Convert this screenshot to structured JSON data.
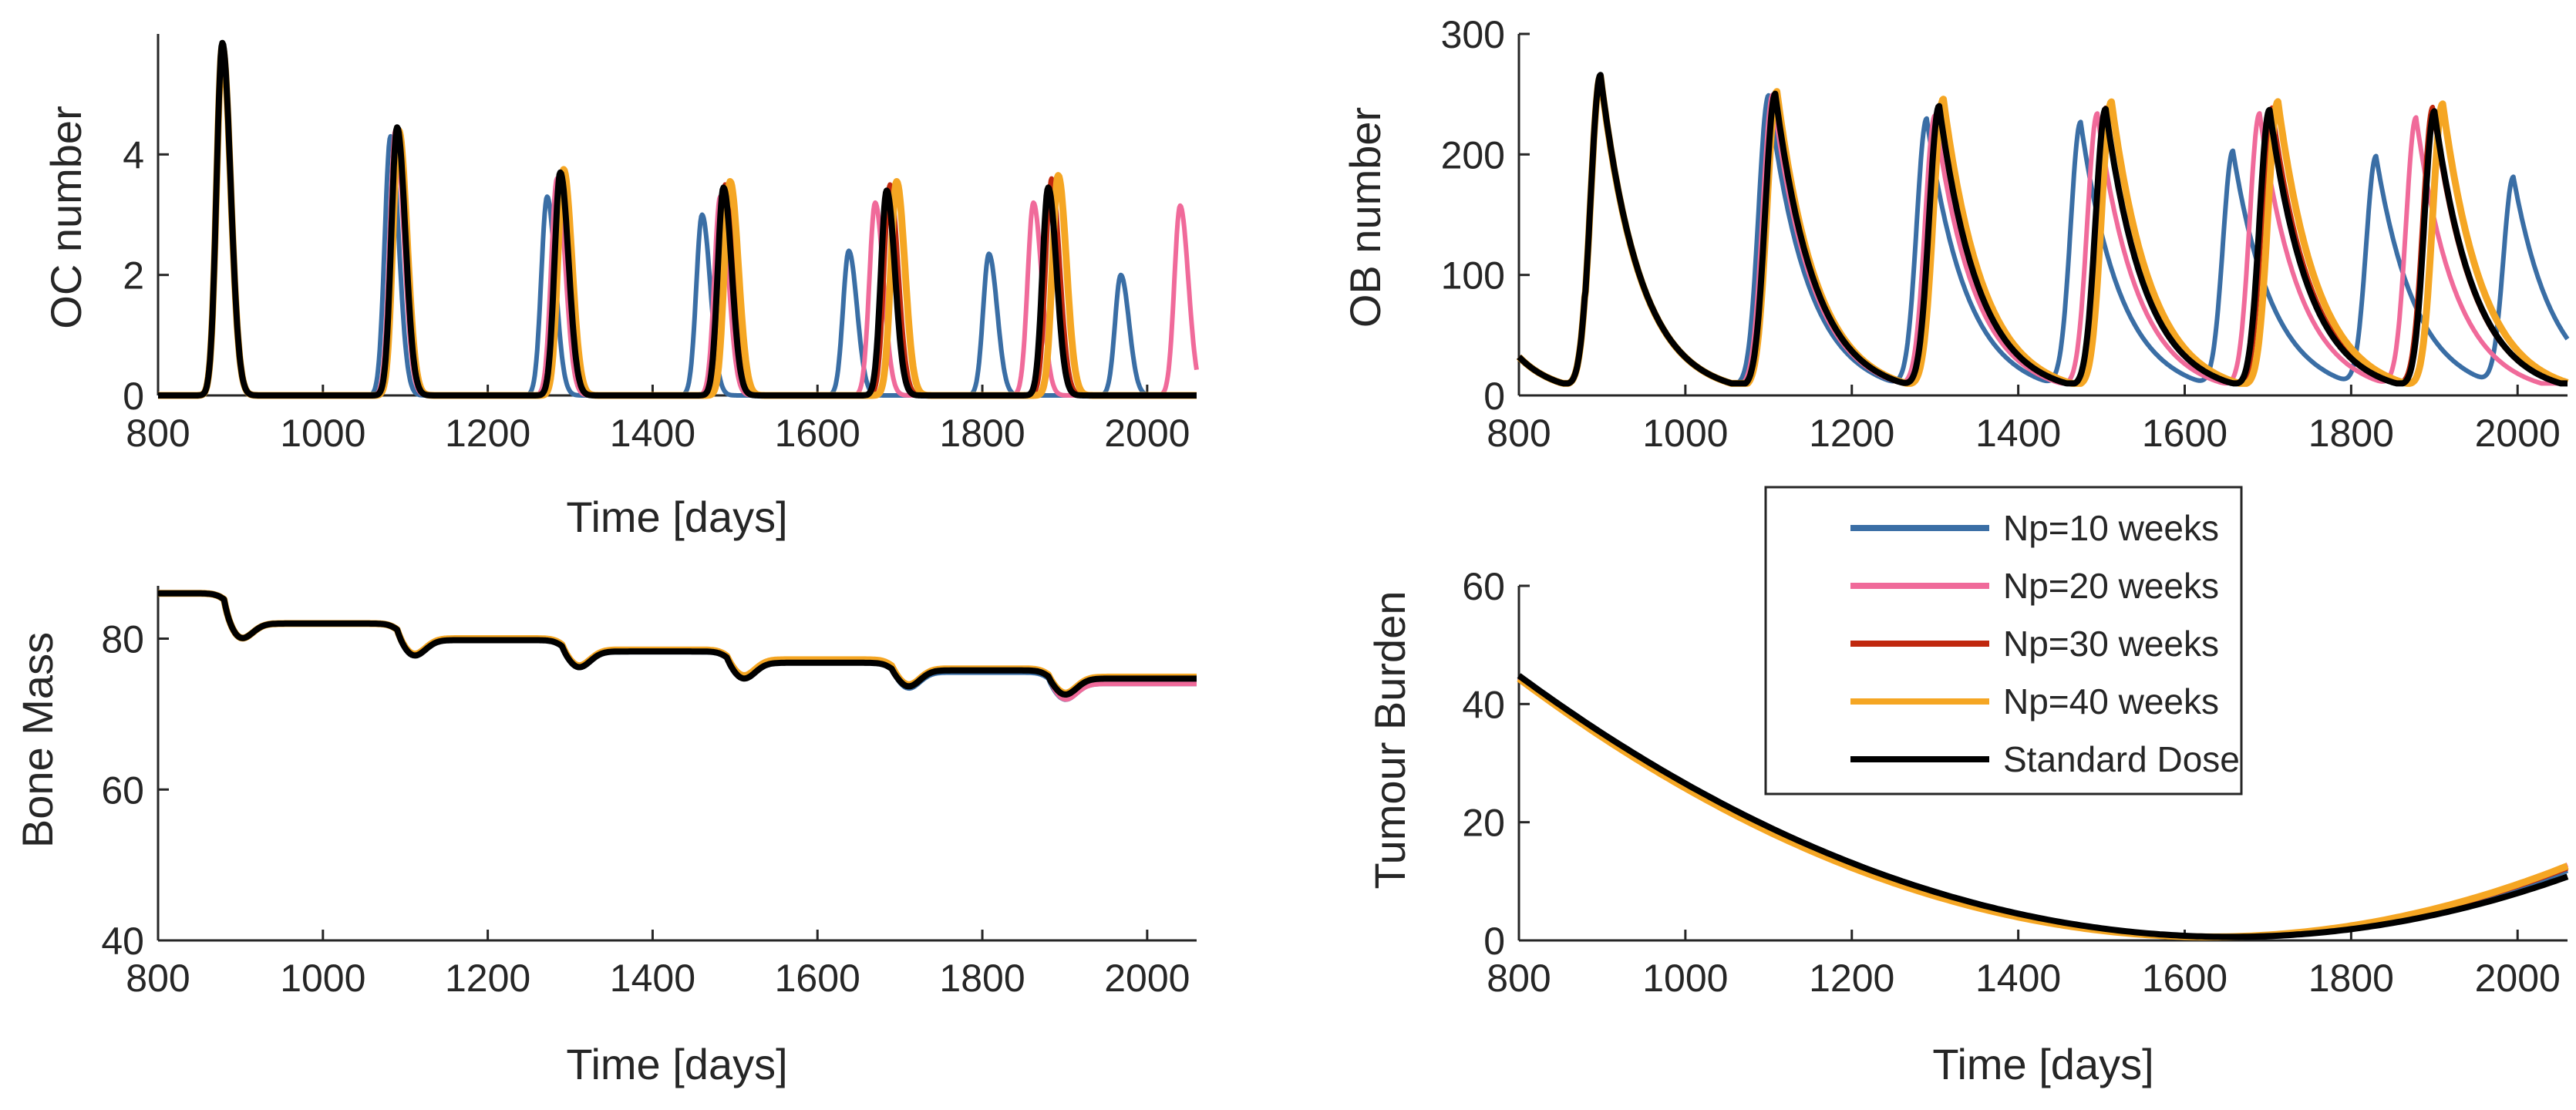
{
  "chart_data": [
    {
      "type": "line",
      "panel": "top-left",
      "xlabel": "Time [days]",
      "ylabel": "OC number",
      "xlim": [
        800,
        2060
      ],
      "ylim": [
        0,
        6
      ],
      "xticks": [
        800,
        1000,
        1200,
        1400,
        1600,
        1800,
        2000
      ],
      "yticks": [
        0,
        2,
        4
      ],
      "series": [
        {
          "name": "Np=10 weeks",
          "peaks": [
            [
              878,
              5.8
            ],
            [
              1082,
              4.3
            ],
            [
              1272,
              3.3
            ],
            [
              1460,
              3.0
            ],
            [
              1638,
              2.4
            ],
            [
              1808,
              2.35
            ],
            [
              1968,
              2.0
            ]
          ]
        },
        {
          "name": "Np=20 weeks",
          "peaks": [
            [
              878,
              5.8
            ],
            [
              1088,
              4.4
            ],
            [
              1284,
              3.6
            ],
            [
              1482,
              3.3
            ],
            [
              1670,
              3.2
            ],
            [
              1862,
              3.2
            ],
            [
              2040,
              3.15
            ]
          ]
        },
        {
          "name": "Np=30 weeks",
          "peaks": [
            [
              878,
              5.8
            ],
            [
              1090,
              4.4
            ],
            [
              1288,
              3.7
            ],
            [
              1488,
              3.5
            ],
            [
              1688,
              3.5
            ],
            [
              1884,
              3.6
            ]
          ]
        },
        {
          "name": "Np=40 weeks",
          "peaks": [
            [
              878,
              5.8
            ],
            [
              1092,
              4.4
            ],
            [
              1292,
              3.75
            ],
            [
              1494,
              3.55
            ],
            [
              1696,
              3.55
            ],
            [
              1892,
              3.65
            ]
          ]
        },
        {
          "name": "Standard Dose",
          "peaks": [
            [
              878,
              5.85
            ],
            [
              1090,
              4.45
            ],
            [
              1288,
              3.7
            ],
            [
              1486,
              3.45
            ],
            [
              1684,
              3.4
            ],
            [
              1880,
              3.45
            ]
          ]
        }
      ]
    },
    {
      "type": "line",
      "panel": "top-right",
      "xlabel": "",
      "ylabel": "OB number",
      "xlim": [
        800,
        2060
      ],
      "ylim": [
        0,
        300
      ],
      "xticks": [
        800,
        1000,
        1200,
        1400,
        1600,
        1800,
        2000
      ],
      "yticks": [
        0,
        100,
        200,
        300
      ],
      "series": [
        {
          "name": "Np=10 weeks",
          "peaks": [
            [
              898,
              265
            ],
            [
              1100,
              245
            ],
            [
              1290,
              225
            ],
            [
              1475,
              222
            ],
            [
              1658,
              198
            ],
            [
              1830,
              193
            ],
            [
              1995,
              175
            ]
          ]
        },
        {
          "name": "Np=20 weeks",
          "peaks": [
            [
              898,
              265
            ],
            [
              1105,
              246
            ],
            [
              1300,
              228
            ],
            [
              1495,
              230
            ],
            [
              1690,
              230
            ],
            [
              1878,
              226
            ]
          ]
        },
        {
          "name": "Np=30 weeks",
          "peaks": [
            [
              898,
              265
            ],
            [
              1108,
              248
            ],
            [
              1305,
              232
            ],
            [
              1505,
              235
            ],
            [
              1705,
              235
            ],
            [
              1898,
              235
            ]
          ]
        },
        {
          "name": "Np=40 weeks",
          "peaks": [
            [
              898,
              265
            ],
            [
              1110,
              249
            ],
            [
              1310,
              242
            ],
            [
              1512,
              240
            ],
            [
              1712,
              240
            ],
            [
              1910,
              238
            ]
          ]
        },
        {
          "name": "Standard Dose",
          "peaks": [
            [
              898,
              266
            ],
            [
              1108,
              247
            ],
            [
              1305,
              236
            ],
            [
              1505,
              234
            ],
            [
              1702,
              233
            ],
            [
              1900,
              232
            ]
          ]
        }
      ]
    },
    {
      "type": "line",
      "panel": "bottom-left",
      "xlabel": "Time [days]",
      "ylabel": "Bone Mass",
      "xlim": [
        800,
        2060
      ],
      "ylim": [
        40,
        87
      ],
      "xticks": [
        800,
        1000,
        1200,
        1400,
        1600,
        1800,
        2000
      ],
      "yticks": [
        40,
        60,
        80
      ],
      "series": [
        {
          "name": "Np=10 weeks",
          "levels": [
            86,
            82,
            79.8,
            78.2,
            76.8,
            75.5,
            74
          ]
        },
        {
          "name": "Np=20 weeks",
          "levels": [
            86,
            82,
            79.9,
            78.3,
            77,
            75.9,
            74
          ]
        },
        {
          "name": "Np=30 weeks",
          "levels": [
            86,
            82,
            80,
            78.4,
            77.1,
            76,
            74.8
          ]
        },
        {
          "name": "Np=40 weeks",
          "levels": [
            86,
            82,
            80,
            78.5,
            77.2,
            76,
            74.9
          ]
        },
        {
          "name": "Standard Dose",
          "levels": [
            86,
            82,
            79.8,
            78.3,
            76.8,
            75.8,
            74.7
          ]
        }
      ]
    },
    {
      "type": "line",
      "panel": "bottom-right",
      "xlabel": "Time [days]",
      "ylabel": "Tumour Burden",
      "xlim": [
        800,
        2060
      ],
      "ylim": [
        0,
        60
      ],
      "xticks": [
        800,
        1000,
        1200,
        1400,
        1600,
        1800,
        2000
      ],
      "yticks": [
        0,
        20,
        40,
        60
      ],
      "series": [
        {
          "name": "Np=10 weeks",
          "start": 44.5,
          "min_x": 1640,
          "end": 11.8
        },
        {
          "name": "Np=20 weeks",
          "start": 44.5,
          "min_x": 1630,
          "end": 12.8
        },
        {
          "name": "Np=30 weeks",
          "start": 44.5,
          "min_x": 1635,
          "end": 12.2
        },
        {
          "name": "Np=40 weeks",
          "start": 44.3,
          "min_x": 1630,
          "end": 12.6
        },
        {
          "name": "Standard Dose",
          "start": 44.8,
          "min_x": 1655,
          "end": 10.8
        }
      ]
    }
  ],
  "legend": {
    "placement": "top-left of bottom-right panel",
    "entries": [
      {
        "label": "Np=10 weeks",
        "color": "#3A6EA5"
      },
      {
        "label": "Np=20 weeks",
        "color": "#F06A9A"
      },
      {
        "label": "Np=30 weeks",
        "color": "#C0280E"
      },
      {
        "label": "Np=40 weeks",
        "color": "#F5A623"
      },
      {
        "label": "Standard Dose",
        "color": "#000000"
      }
    ]
  }
}
